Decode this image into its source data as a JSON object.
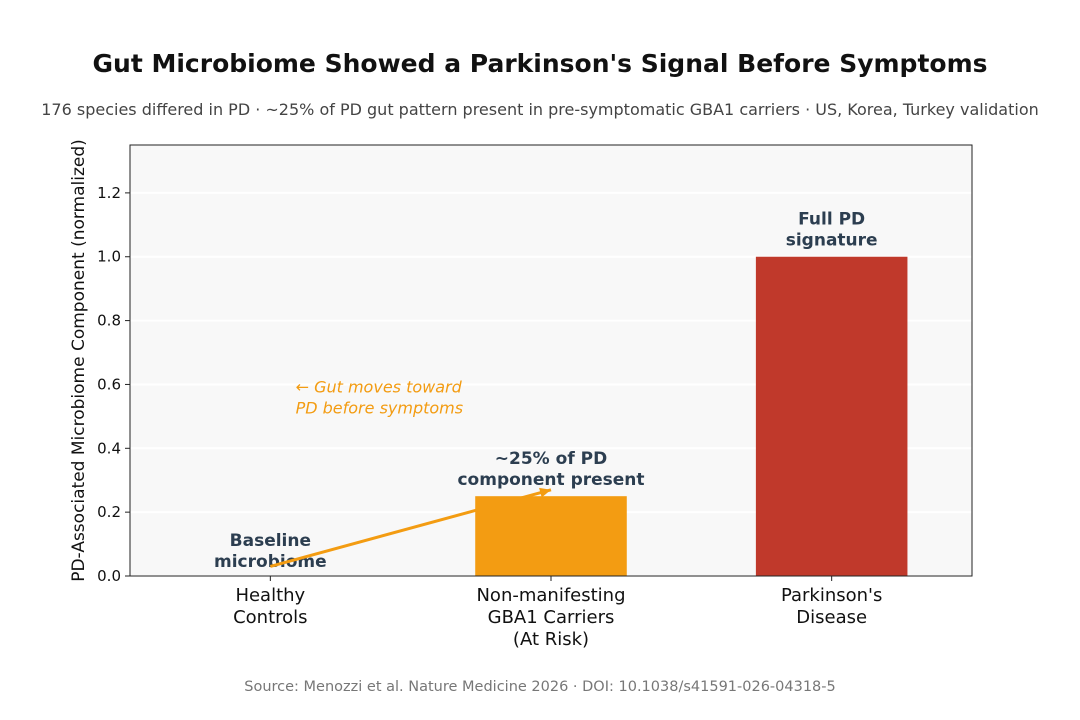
{
  "chart_data": {
    "type": "bar",
    "title": "Gut Microbiome Showed a Parkinson's Signal Before Symptoms",
    "subtitle": "176 species differed in PD · ~25% of PD gut pattern present in pre-symptomatic GBA1 carriers · US, Korea, Turkey validation",
    "ylabel": "PD-Associated Microbiome Component (normalized)",
    "xlabel": "",
    "ylim": [
      0,
      1.35
    ],
    "yticks": [
      "0.0",
      "0.2",
      "0.4",
      "0.6",
      "0.8",
      "1.0",
      "1.2"
    ],
    "grid": "horizontal",
    "categories": [
      [
        "Healthy",
        "Controls"
      ],
      [
        "Non-manifesting",
        "GBA1 Carriers",
        "(At Risk)"
      ],
      [
        "Parkinson's",
        "Disease"
      ]
    ],
    "values": [
      0,
      0.25,
      1.0
    ],
    "colors": [
      "#f39c12",
      "#f39c12",
      "#c0392b"
    ],
    "bar_labels": [
      [
        "Baseline",
        "microbiome"
      ],
      [
        "~25% of PD",
        "component present"
      ],
      [
        "Full PD",
        "signature"
      ]
    ],
    "annotation": {
      "text": [
        "← Gut moves toward",
        "PD before symptoms"
      ],
      "color": "#f39c12",
      "arrow_from": {
        "category_index": 0,
        "value": 0.03
      },
      "arrow_to": {
        "category_index": 1,
        "value": 0.27
      }
    },
    "source": "Source: Menozzi et al. Nature Medicine 2026 · DOI: 10.1038/s41591-026-04318-5"
  }
}
